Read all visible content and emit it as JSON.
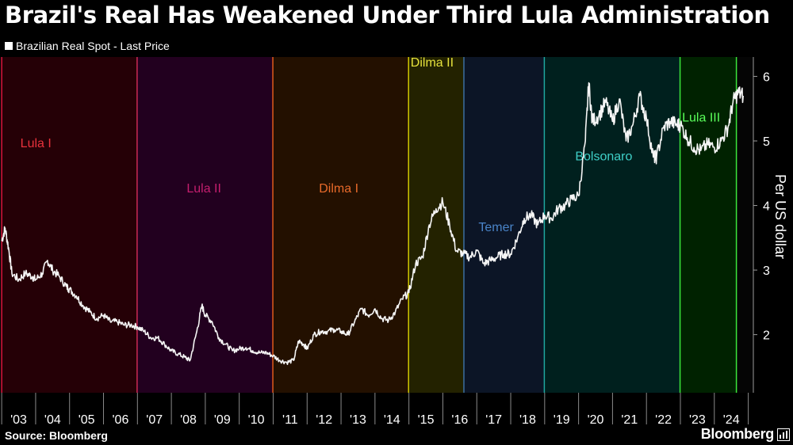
{
  "chart_data": {
    "type": "line",
    "title": "Brazil's Real Has Weakened Under Third Lula Administration",
    "ylabel": "Per US dollar",
    "ylim": [
      1.1,
      6.3
    ],
    "xlim": [
      2002.95,
      2025.15
    ],
    "yticks": [
      2,
      3,
      4,
      5,
      6
    ],
    "x_tick_labels": [
      "'03",
      "'04",
      "'05",
      "'06",
      "'07",
      "'08",
      "'09",
      "'10",
      "'11",
      "'12",
      "'13",
      "'14",
      "'15",
      "'16",
      "'17",
      "'18",
      "'19",
      "'20",
      "'21",
      "'22",
      "'23",
      "'24"
    ],
    "grid": false,
    "legend_position": "top-left",
    "series": [
      {
        "name": "Brazilian Real Spot - Last Price",
        "color": "#f5f5f5",
        "x": [
          2003.0,
          2003.1,
          2003.2,
          2003.3,
          2003.5,
          2003.7,
          2003.9,
          2004.0,
          2004.2,
          2004.35,
          2004.5,
          2004.7,
          2004.9,
          2005.0,
          2005.2,
          2005.4,
          2005.6,
          2005.8,
          2006.0,
          2006.2,
          2006.4,
          2006.6,
          2006.8,
          2007.0,
          2007.2,
          2007.4,
          2007.6,
          2007.8,
          2008.0,
          2008.2,
          2008.4,
          2008.55,
          2008.75,
          2008.9,
          2009.0,
          2009.2,
          2009.4,
          2009.6,
          2009.8,
          2010.0,
          2010.2,
          2010.4,
          2010.6,
          2010.8,
          2011.0,
          2011.2,
          2011.4,
          2011.6,
          2011.75,
          2011.9,
          2012.0,
          2012.2,
          2012.4,
          2012.6,
          2012.8,
          2013.0,
          2013.2,
          2013.4,
          2013.6,
          2013.8,
          2014.0,
          2014.2,
          2014.4,
          2014.6,
          2014.8,
          2015.0,
          2015.2,
          2015.4,
          2015.6,
          2015.8,
          2016.0,
          2016.2,
          2016.4,
          2016.6,
          2016.8,
          2017.0,
          2017.2,
          2017.4,
          2017.6,
          2017.8,
          2018.0,
          2018.2,
          2018.4,
          2018.6,
          2018.8,
          2019.0,
          2019.2,
          2019.4,
          2019.6,
          2019.8,
          2020.0,
          2020.2,
          2020.3,
          2020.4,
          2020.6,
          2020.8,
          2021.0,
          2021.2,
          2021.4,
          2021.6,
          2021.8,
          2022.0,
          2022.2,
          2022.3,
          2022.5,
          2022.7,
          2022.9,
          2023.0,
          2023.2,
          2023.4,
          2023.6,
          2023.8,
          2024.0,
          2024.2,
          2024.4,
          2024.55,
          2024.7,
          2024.85
        ],
        "values": [
          3.45,
          3.65,
          3.35,
          2.95,
          2.85,
          2.95,
          2.9,
          2.85,
          2.95,
          3.15,
          3.0,
          2.9,
          2.75,
          2.7,
          2.6,
          2.45,
          2.35,
          2.25,
          2.3,
          2.2,
          2.2,
          2.15,
          2.15,
          2.12,
          2.05,
          1.95,
          1.95,
          1.85,
          1.75,
          1.7,
          1.65,
          1.6,
          2.05,
          2.45,
          2.3,
          2.2,
          1.95,
          1.85,
          1.75,
          1.78,
          1.8,
          1.75,
          1.72,
          1.72,
          1.67,
          1.6,
          1.57,
          1.6,
          1.9,
          1.85,
          1.78,
          2.0,
          2.05,
          2.05,
          2.08,
          2.05,
          2.0,
          2.2,
          2.4,
          2.3,
          2.4,
          2.25,
          2.22,
          2.35,
          2.55,
          2.65,
          3.1,
          3.2,
          3.7,
          3.95,
          4.05,
          3.7,
          3.3,
          3.25,
          3.2,
          3.3,
          3.1,
          3.15,
          3.2,
          3.25,
          3.25,
          3.5,
          3.8,
          3.85,
          3.7,
          3.85,
          3.8,
          3.95,
          4.0,
          4.1,
          4.15,
          5.0,
          5.9,
          5.3,
          5.4,
          5.6,
          5.3,
          5.65,
          5.0,
          5.25,
          5.7,
          5.35,
          4.75,
          4.75,
          5.2,
          5.3,
          5.25,
          5.25,
          5.05,
          4.9,
          4.85,
          4.95,
          4.9,
          5.0,
          5.2,
          5.6,
          5.75,
          5.7
        ]
      }
    ],
    "administrations": [
      {
        "label": "Lula I",
        "start": 2003.0,
        "end": 2006.99,
        "label_x": 2003.55,
        "label_y": 4.9,
        "fill": "#250006",
        "line": "#dc143c",
        "text_color": "#e8323c"
      },
      {
        "label": "Lula II",
        "start": 2006.99,
        "end": 2010.99,
        "label_x": 2008.45,
        "label_y": 4.2,
        "fill": "#22001f",
        "line": "#cc2b55",
        "text_color": "#c41e6e"
      },
      {
        "label": "Dilma I",
        "start": 2010.99,
        "end": 2014.99,
        "label_x": 2012.35,
        "label_y": 4.2,
        "fill": "#231000",
        "line": "#e05c1a",
        "text_color": "#e86a2a"
      },
      {
        "label": "Dilma II",
        "start": 2014.99,
        "end": 2016.62,
        "label_x": 2015.05,
        "label_y": 6.15,
        "fill": "#232200",
        "line": "#d0c800",
        "text_color": "#e6e23c"
      },
      {
        "label": "Temer",
        "start": 2016.62,
        "end": 2018.99,
        "label_x": 2017.05,
        "label_y": 3.6,
        "fill": "#0c1526",
        "line": "#3c6ea0",
        "text_color": "#4a84c8"
      },
      {
        "label": "Bolsonaro",
        "start": 2018.99,
        "end": 2022.99,
        "label_x": 2019.9,
        "label_y": 4.7,
        "fill": "#00201e",
        "line": "#1fa8a0",
        "text_color": "#3fd0c8"
      },
      {
        "label": "Lula III",
        "start": 2022.99,
        "end": 2024.65,
        "label_x": 2023.05,
        "label_y": 5.3,
        "fill": "#002200",
        "line": "#3ce63c",
        "text_color": "#5aff5a"
      }
    ]
  },
  "source": "Source: Bloomberg",
  "brand": "Bloomberg",
  "brand_icon": "bloomberg-terminal-icon"
}
